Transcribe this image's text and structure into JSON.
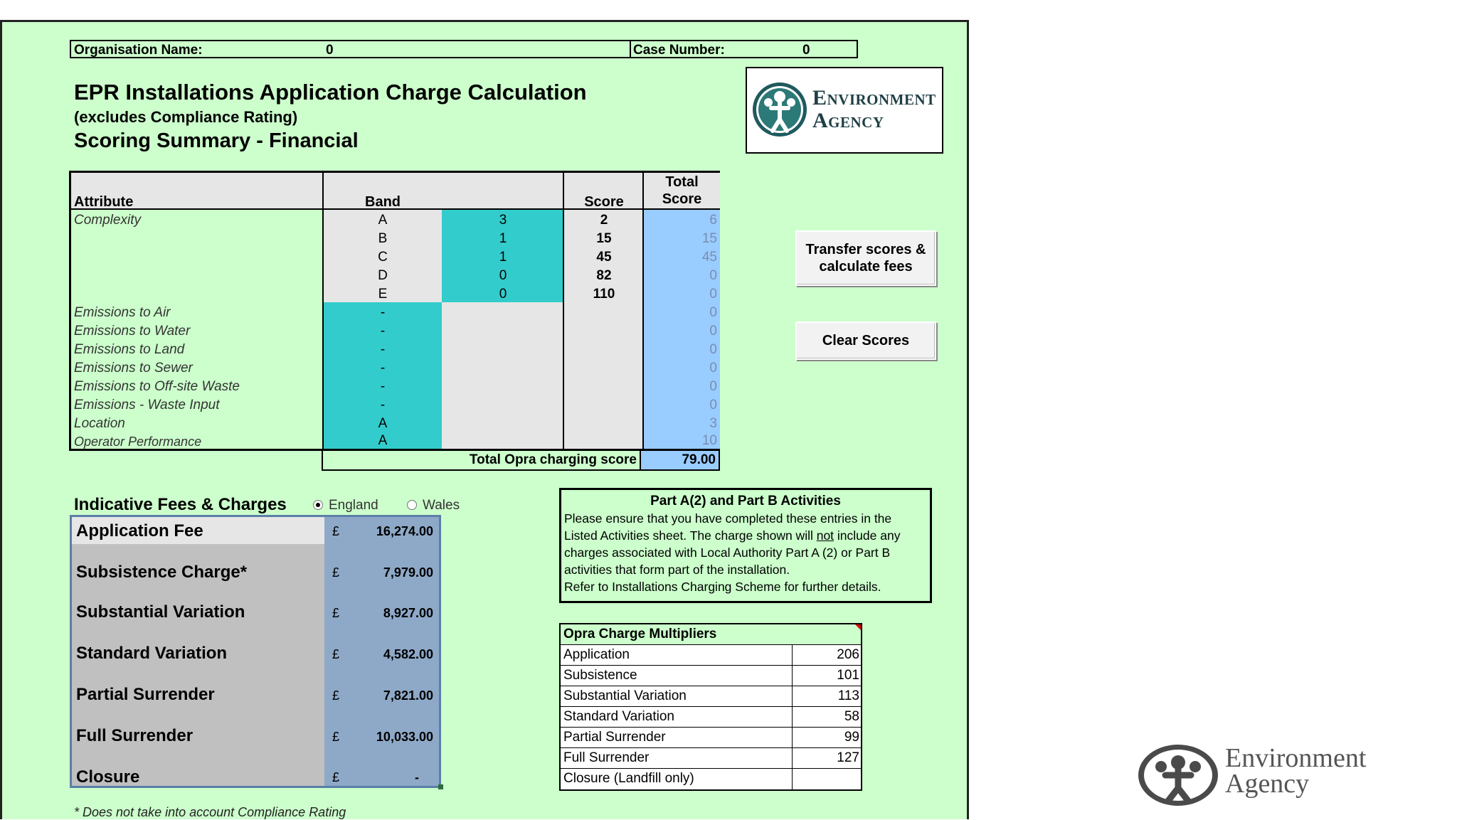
{
  "header": {
    "org_label": "Organisation Name:",
    "org_value": "0",
    "case_label": "Case Number:",
    "case_value": "0"
  },
  "titles": {
    "main": "EPR Installations Application Charge Calculation",
    "sub": "(excludes Compliance Rating)",
    "section": "Scoring Summary - Financial"
  },
  "logo": {
    "line1": "Environment",
    "line2": "Agency"
  },
  "score_table": {
    "headers": {
      "attribute": "Attribute",
      "band": "Band",
      "score": "Score",
      "total1": "Total",
      "total2": "Score"
    },
    "complexity_label": "Complexity",
    "complexity_rows": [
      {
        "band": "A",
        "qty": "3",
        "score": "2",
        "total": "6"
      },
      {
        "band": "B",
        "qty": "1",
        "score": "15",
        "total": "15"
      },
      {
        "band": "C",
        "qty": "1",
        "score": "45",
        "total": "45"
      },
      {
        "band": "D",
        "qty": "0",
        "score": "82",
        "total": "0"
      },
      {
        "band": "E",
        "qty": "0",
        "score": "110",
        "total": "0"
      }
    ],
    "attribute_rows": [
      {
        "label": "Emissions to Air",
        "band": "-",
        "total": "0"
      },
      {
        "label": "Emissions to Water",
        "band": "-",
        "total": "0"
      },
      {
        "label": "Emissions to Land",
        "band": "-",
        "total": "0"
      },
      {
        "label": "Emissions to Sewer",
        "band": "-",
        "total": "0"
      },
      {
        "label": "Emissions to Off-site Waste",
        "band": "-",
        "total": "0"
      },
      {
        "label": "Emissions - Waste Input",
        "band": "-",
        "total": "0"
      },
      {
        "label": "Location",
        "band": "A",
        "total": "3"
      },
      {
        "label": "Operator Performance",
        "band": "A",
        "total": "10"
      }
    ],
    "total_label": "Total Opra charging score",
    "total_value": "79.00"
  },
  "buttons": {
    "transfer_line1": "Transfer scores &",
    "transfer_line2": "calculate fees",
    "clear": "Clear Scores"
  },
  "fees": {
    "heading": "Indicative Fees & Charges",
    "region_england": "England",
    "region_wales": "Wales",
    "selected_region": "England",
    "currency": "£",
    "rows": [
      {
        "label": "Application Fee",
        "value": "16,274.00"
      },
      {
        "label": "Subsistence Charge*",
        "value": "7,979.00"
      },
      {
        "label": "Substantial Variation",
        "value": "8,927.00"
      },
      {
        "label": "Standard Variation",
        "value": "4,582.00"
      },
      {
        "label": "Partial Surrender",
        "value": "7,821.00"
      },
      {
        "label": "Full Surrender",
        "value": "10,033.00"
      },
      {
        "label": "Closure",
        "value": "-"
      }
    ],
    "footnote": "* Does not take into account Compliance Rating"
  },
  "part_a": {
    "title": "Part A(2) and Part B Activities",
    "line1": "Please ensure that you have completed these entries in the",
    "line2_pre": "Listed Activities sheet. The charge shown will ",
    "line2_ul": "not",
    "line2_post": " include any",
    "line3": "charges associated with Local Authority Part A (2) or Part B",
    "line4": "activities that form part of the installation.",
    "line5": "Refer to Installations Charging Scheme for further details."
  },
  "multipliers": {
    "title": "Opra Charge Multipliers",
    "rows": [
      {
        "label": "Application",
        "value": "206"
      },
      {
        "label": "Subsistence",
        "value": "101"
      },
      {
        "label": "Substantial Variation",
        "value": "113"
      },
      {
        "label": "Standard Variation",
        "value": "58"
      },
      {
        "label": "Partial Surrender",
        "value": "99"
      },
      {
        "label": "Full Surrender",
        "value": "127"
      },
      {
        "label": "Closure (Landfill only)",
        "value": ""
      }
    ]
  },
  "footer_logo": {
    "line1": "Environment",
    "line2": "Agency"
  },
  "colors": {
    "sheet": "#ccffcc",
    "teal": "#33cccc",
    "blue_total": "#99ccff",
    "fee_band": "#8ea9c8"
  }
}
